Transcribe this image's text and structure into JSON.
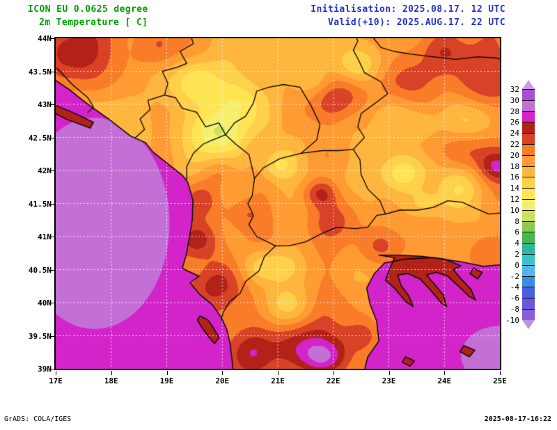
{
  "header": {
    "model": "ICON EU 0.0625 degree",
    "parameter": "2m Temperature [ C]",
    "initialisation": "Initialisation: 2025.08.17. 12 UTC",
    "valid": "Valid(+10): 2025.AUG.17. 22 UTC",
    "title_color": "#00a000",
    "info_color": "#2233cc"
  },
  "footer": {
    "left": "GrADS: COLA/IGES",
    "right": "2025-08-17-16:22"
  },
  "axes": {
    "lat": {
      "labels": [
        "44N",
        "43.5N",
        "43N",
        "42.5N",
        "42N",
        "41.5N",
        "41N",
        "40.5N",
        "40N",
        "39.5N",
        "39N"
      ],
      "values": [
        44,
        43.5,
        43,
        42.5,
        42,
        41.5,
        41,
        40.5,
        40,
        39.5,
        39
      ]
    },
    "lon": {
      "labels": [
        "17E",
        "18E",
        "19E",
        "20E",
        "21E",
        "22E",
        "23E",
        "24E",
        "25E"
      ],
      "values": [
        17,
        18,
        19,
        20,
        21,
        22,
        23,
        24,
        25
      ]
    }
  },
  "legend": {
    "values": [
      "32",
      "30",
      "28",
      "26",
      "24",
      "22",
      "20",
      "18",
      "16",
      "14",
      "12",
      "10",
      "8",
      "6",
      "4",
      "2",
      "0",
      "-2",
      "-4",
      "-6",
      "-8",
      "-10"
    ],
    "unit": "C"
  },
  "chart_data": {
    "type": "heatmap",
    "title": "2m Temperature [ C]",
    "model": "ICON EU 0.0625 degree",
    "init_utc": "2025.08.17. 12 UTC",
    "valid_utc": "2025.AUG.17. 22 UTC",
    "lead_hours": 10,
    "lon_range": [
      17,
      25
    ],
    "lat_range": [
      39,
      44
    ],
    "levels_c": [
      -10,
      -8,
      -6,
      -4,
      -2,
      0,
      2,
      4,
      6,
      8,
      10,
      12,
      14,
      16,
      18,
      20,
      22,
      24,
      26,
      28,
      30,
      32
    ],
    "palette": [
      "#b894e0",
      "#8a5fd6",
      "#6b54e0",
      "#4661e0",
      "#3f8ae8",
      "#52b5ec",
      "#3cc3c8",
      "#2eb89a",
      "#47b84f",
      "#8ccb4e",
      "#cde25c",
      "#f4ef6d",
      "#ffe554",
      "#ffd04a",
      "#ffb63e",
      "#ff9b32",
      "#f97c28",
      "#d84226",
      "#b22219",
      "#d224c9",
      "#c36fd6",
      "#a94fd0",
      "#c79ae6"
    ],
    "grid": {
      "lon_step": 1,
      "lat_step": 0.5,
      "color": "rgba(255,255,255,0.85)",
      "dash": [
        2,
        3
      ]
    },
    "field_model": {
      "base_c": 20.5,
      "noise": [
        {
          "freq": 0.45,
          "amp": 4
        },
        {
          "freq": 1.7,
          "amp": 1.8
        }
      ],
      "warm_spots": [
        [
          17.3,
          43.75,
          4.5,
          0.55
        ],
        [
          18.9,
          43.85,
          3.0,
          0.45
        ],
        [
          19.95,
          41.95,
          3.5,
          0.35
        ],
        [
          19.62,
          41.55,
          5.0,
          0.38
        ],
        [
          19.55,
          40.95,
          5.0,
          0.4
        ],
        [
          19.85,
          40.28,
          4.5,
          0.45
        ],
        [
          20.35,
          41.35,
          3.0,
          0.35
        ],
        [
          21.78,
          41.66,
          6.5,
          0.3
        ],
        [
          22.05,
          41.3,
          4.0,
          0.5
        ],
        [
          22.3,
          43.2,
          4.5,
          0.45
        ],
        [
          21.9,
          43.0,
          3.0,
          0.4
        ],
        [
          24.0,
          43.85,
          6.0,
          0.5
        ],
        [
          24.7,
          43.35,
          5.0,
          0.65
        ],
        [
          23.3,
          43.35,
          3.5,
          0.45
        ],
        [
          24.55,
          42.25,
          4.5,
          0.6
        ],
        [
          24.95,
          42.05,
          6.0,
          0.32
        ],
        [
          22.85,
          40.85,
          4.5,
          0.45
        ],
        [
          21.5,
          39.35,
          5.0,
          0.6
        ],
        [
          21.85,
          39.15,
          6.0,
          0.4
        ],
        [
          20.45,
          39.25,
          4.0,
          0.4
        ],
        [
          22.5,
          39.5,
          3.5,
          0.3
        ],
        [
          24.85,
          40.85,
          3.5,
          0.4
        ]
      ],
      "cool_spots": [
        [
          19.95,
          42.6,
          -6.5,
          0.5
        ],
        [
          19.55,
          43.3,
          -4.0,
          0.45
        ],
        [
          20.3,
          43.05,
          -3.5,
          0.4
        ],
        [
          21.0,
          42.08,
          -4.5,
          0.32
        ],
        [
          23.28,
          41.95,
          -6.0,
          0.42
        ],
        [
          23.62,
          41.5,
          -3.5,
          0.3
        ],
        [
          24.35,
          41.82,
          -5.0,
          0.55
        ],
        [
          20.7,
          40.55,
          -4.0,
          0.38
        ],
        [
          21.1,
          39.95,
          -4.5,
          0.45
        ],
        [
          21.15,
          40.55,
          -3.0,
          0.35
        ],
        [
          22.4,
          43.62,
          -3.5,
          0.45
        ],
        [
          24.5,
          42.72,
          -4.0,
          0.5
        ],
        [
          23.55,
          42.7,
          -3.0,
          0.35
        ],
        [
          21.65,
          43.35,
          -2.5,
          0.35
        ]
      ],
      "sea_temp_c": 27,
      "sea_patches": [
        {
          "lon": 17.7,
          "lat": 41.2,
          "rx": 1.35,
          "ry": 1.6,
          "temp_c": 29
        },
        {
          "lon": 25.0,
          "lat": 39.2,
          "rx": 0.7,
          "ry": 0.45,
          "temp_c": 29
        }
      ]
    },
    "geo": {
      "island_color_index": 18,
      "seas": {
        "adriatic_ionian": [
          [
            16.9,
            43.42
          ],
          [
            17.25,
            43.22
          ],
          [
            17.55,
            43.02
          ],
          [
            17.95,
            42.78
          ],
          [
            18.35,
            42.52
          ],
          [
            18.62,
            42.42
          ],
          [
            18.75,
            42.28
          ],
          [
            19.05,
            42.08
          ],
          [
            19.28,
            41.93
          ],
          [
            19.38,
            41.82
          ],
          [
            19.47,
            41.55
          ],
          [
            19.46,
            41.25
          ],
          [
            19.4,
            40.95
          ],
          [
            19.35,
            40.72
          ],
          [
            19.28,
            40.52
          ],
          [
            19.45,
            40.45
          ],
          [
            19.58,
            40.4
          ],
          [
            19.42,
            40.3
          ],
          [
            19.6,
            40.12
          ],
          [
            19.82,
            39.97
          ],
          [
            19.98,
            39.78
          ],
          [
            20.08,
            39.6
          ],
          [
            20.14,
            39.38
          ],
          [
            20.18,
            39.1
          ],
          [
            20.2,
            38.85
          ],
          [
            16.9,
            38.85
          ]
        ],
        "aegean": [
          [
            22.52,
            38.85
          ],
          [
            22.62,
            39.18
          ],
          [
            22.82,
            39.42
          ],
          [
            22.78,
            39.72
          ],
          [
            22.66,
            39.98
          ],
          [
            22.6,
            40.22
          ],
          [
            22.74,
            40.44
          ],
          [
            22.92,
            40.6
          ],
          [
            23.3,
            40.66
          ],
          [
            23.8,
            40.68
          ],
          [
            24.3,
            40.62
          ],
          [
            24.7,
            40.55
          ],
          [
            25.1,
            40.58
          ],
          [
            25.1,
            38.85
          ]
        ]
      },
      "islands": {
        "dalmatia": [
          [
            16.9,
            43.02
          ],
          [
            17.3,
            42.88
          ],
          [
            17.68,
            42.73
          ],
          [
            17.62,
            42.64
          ],
          [
            17.18,
            42.78
          ],
          [
            16.9,
            42.9
          ]
        ],
        "corfu": [
          [
            19.6,
            39.8
          ],
          [
            19.74,
            39.74
          ],
          [
            19.84,
            39.62
          ],
          [
            19.94,
            39.47
          ],
          [
            19.86,
            39.38
          ],
          [
            19.74,
            39.5
          ],
          [
            19.62,
            39.64
          ],
          [
            19.55,
            39.74
          ]
        ],
        "halkidiki": [
          [
            22.82,
            40.72
          ],
          [
            23.1,
            40.68
          ],
          [
            23.0,
            40.48
          ],
          [
            22.94,
            40.34
          ],
          [
            23.1,
            40.22
          ],
          [
            23.3,
            40.02
          ],
          [
            23.44,
            39.94
          ],
          [
            23.36,
            40.1
          ],
          [
            23.22,
            40.26
          ],
          [
            23.16,
            40.42
          ],
          [
            23.34,
            40.44
          ],
          [
            23.56,
            40.36
          ],
          [
            23.74,
            40.2
          ],
          [
            23.94,
            40.0
          ],
          [
            24.04,
            39.94
          ],
          [
            23.98,
            40.12
          ],
          [
            23.82,
            40.28
          ],
          [
            23.68,
            40.42
          ],
          [
            23.86,
            40.46
          ],
          [
            24.06,
            40.4
          ],
          [
            24.24,
            40.26
          ],
          [
            24.44,
            40.1
          ],
          [
            24.56,
            40.04
          ],
          [
            24.48,
            40.2
          ],
          [
            24.3,
            40.36
          ],
          [
            24.16,
            40.5
          ],
          [
            24.3,
            40.56
          ],
          [
            24.0,
            40.66
          ],
          [
            23.6,
            40.7
          ],
          [
            23.2,
            40.72
          ]
        ],
        "sporades": [
          [
            23.3,
            39.18
          ],
          [
            23.46,
            39.12
          ],
          [
            23.38,
            39.04
          ],
          [
            23.24,
            39.1
          ]
        ],
        "limnos": [
          [
            24.35,
            39.35
          ],
          [
            24.55,
            39.28
          ],
          [
            24.45,
            39.18
          ],
          [
            24.28,
            39.26
          ]
        ],
        "thassos": [
          [
            24.52,
            40.52
          ],
          [
            24.68,
            40.46
          ],
          [
            24.6,
            40.36
          ],
          [
            24.46,
            40.44
          ]
        ]
      },
      "borders": {
        "croatia_bih": [
          [
            17.02,
            43.55
          ],
          [
            17.3,
            43.3
          ],
          [
            17.58,
            43.1
          ],
          [
            17.68,
            42.96
          ],
          [
            17.58,
            42.88
          ]
        ],
        "bih_montenegro_serbia": [
          [
            18.44,
            42.5
          ],
          [
            18.6,
            42.62
          ],
          [
            18.52,
            42.78
          ],
          [
            18.7,
            42.92
          ],
          [
            18.66,
            43.06
          ],
          [
            18.96,
            43.14
          ],
          [
            19.02,
            43.32
          ],
          [
            18.92,
            43.5
          ],
          [
            19.18,
            43.56
          ],
          [
            19.36,
            43.62
          ],
          [
            19.24,
            43.8
          ],
          [
            19.48,
            43.92
          ],
          [
            19.44,
            44.02
          ]
        ],
        "montenegro_albania": [
          [
            19.36,
            41.86
          ],
          [
            19.36,
            42.06
          ],
          [
            19.48,
            42.26
          ],
          [
            19.66,
            42.4
          ],
          [
            19.82,
            42.46
          ],
          [
            20.06,
            42.54
          ]
        ],
        "montenegro_serbia": [
          [
            20.06,
            42.54
          ],
          [
            19.94,
            42.72
          ],
          [
            19.7,
            42.66
          ],
          [
            19.54,
            42.88
          ],
          [
            19.28,
            42.94
          ],
          [
            19.16,
            43.1
          ],
          [
            18.96,
            43.14
          ]
        ],
        "kosovo_serbia": [
          [
            20.06,
            42.54
          ],
          [
            20.22,
            42.72
          ],
          [
            20.42,
            42.82
          ],
          [
            20.56,
            43.02
          ],
          [
            20.62,
            43.2
          ],
          [
            20.84,
            43.26
          ],
          [
            21.1,
            43.3
          ],
          [
            21.4,
            43.26
          ],
          [
            21.6,
            42.98
          ],
          [
            21.76,
            42.7
          ],
          [
            21.7,
            42.46
          ],
          [
            21.42,
            42.26
          ]
        ],
        "macedonia_north": [
          [
            20.58,
            41.88
          ],
          [
            20.74,
            42.04
          ],
          [
            21.04,
            42.18
          ],
          [
            21.42,
            42.26
          ],
          [
            21.8,
            42.3
          ],
          [
            22.1,
            42.3
          ],
          [
            22.36,
            42.32
          ]
        ],
        "albania_kosovo": [
          [
            20.06,
            42.54
          ],
          [
            20.24,
            42.4
          ],
          [
            20.48,
            42.24
          ],
          [
            20.58,
            41.88
          ]
        ],
        "albania_macedonia": [
          [
            20.58,
            41.88
          ],
          [
            20.54,
            41.62
          ],
          [
            20.46,
            41.5
          ],
          [
            20.56,
            41.32
          ],
          [
            20.48,
            41.18
          ],
          [
            20.62,
            41.0
          ],
          [
            20.96,
            40.86
          ]
        ],
        "albania_greece": [
          [
            20.96,
            40.86
          ],
          [
            20.76,
            40.7
          ],
          [
            20.66,
            40.48
          ],
          [
            20.42,
            40.32
          ],
          [
            20.32,
            40.14
          ],
          [
            20.14,
            40.02
          ],
          [
            20.02,
            39.86
          ],
          [
            19.98,
            39.74
          ]
        ],
        "macedonia_greece": [
          [
            20.96,
            40.86
          ],
          [
            21.2,
            40.86
          ],
          [
            21.5,
            40.92
          ],
          [
            21.78,
            41.04
          ],
          [
            22.06,
            41.14
          ],
          [
            22.4,
            41.12
          ],
          [
            22.62,
            41.14
          ],
          [
            22.78,
            41.32
          ],
          [
            22.94,
            41.34
          ]
        ],
        "macedonia_bulgaria": [
          [
            22.36,
            42.32
          ],
          [
            22.48,
            42.16
          ],
          [
            22.5,
            41.94
          ],
          [
            22.62,
            41.72
          ],
          [
            22.84,
            41.54
          ],
          [
            22.94,
            41.34
          ]
        ],
        "serbia_bulgaria": [
          [
            22.36,
            42.32
          ],
          [
            22.56,
            42.5
          ],
          [
            22.44,
            42.66
          ],
          [
            22.5,
            42.86
          ],
          [
            22.76,
            43.02
          ],
          [
            22.98,
            43.16
          ],
          [
            22.86,
            43.34
          ],
          [
            22.56,
            43.48
          ],
          [
            22.46,
            43.66
          ],
          [
            22.36,
            43.82
          ],
          [
            22.44,
            43.96
          ],
          [
            22.4,
            44.05
          ]
        ],
        "greece_bulgaria": [
          [
            22.94,
            41.34
          ],
          [
            23.2,
            41.4
          ],
          [
            23.52,
            41.4
          ],
          [
            23.8,
            41.44
          ],
          [
            24.06,
            41.54
          ],
          [
            24.32,
            41.52
          ],
          [
            24.58,
            41.42
          ],
          [
            24.8,
            41.34
          ],
          [
            25.05,
            41.36
          ]
        ],
        "bulgaria_romania": [
          [
            22.68,
            44.05
          ],
          [
            22.86,
            43.86
          ],
          [
            23.1,
            43.8
          ],
          [
            23.4,
            43.76
          ],
          [
            23.8,
            43.72
          ],
          [
            24.2,
            43.68
          ],
          [
            24.6,
            43.72
          ],
          [
            24.96,
            43.7
          ],
          [
            25.05,
            43.66
          ]
        ]
      }
    }
  }
}
